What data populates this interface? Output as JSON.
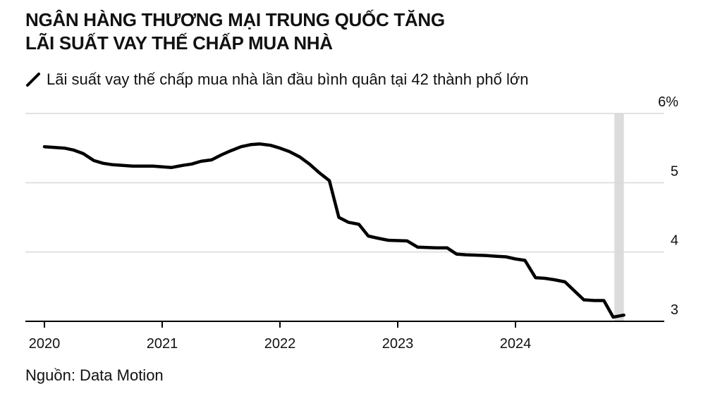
{
  "title_lines": [
    "NGÂN HÀNG THƯƠNG MẠI TRUNG QUỐC TĂNG",
    "LÃI SUẤT VAY THẾ CHẤP MUA NHÀ"
  ],
  "legend_label": "Lãi suất vay thế chấp mua nhà lần đầu bình quân tại 42 thành phố lớn",
  "source": "Nguồn: Data Motion",
  "colors": {
    "line": "#000000",
    "grid": "#d9d9d9",
    "highlight": "#dcdcdc",
    "axis": "#000000"
  },
  "chart_data": {
    "type": "line",
    "title": "NGÂN HÀNG THƯƠNG MẠI TRUNG QUỐC TĂNG LÃI SUẤT VAY THẾ CHẤP MUA NHÀ",
    "ylim": [
      3,
      6
    ],
    "y_ticks": [
      6,
      5,
      4,
      3
    ],
    "y_tick_labels": [
      "6%",
      "5",
      "4",
      "3"
    ],
    "x_ticks": [
      2020,
      2021,
      2022,
      2023,
      2024
    ],
    "x_tick_labels": [
      "2020",
      "2021",
      "2022",
      "2023",
      "2024"
    ],
    "grid": "horizontal",
    "y_axis_position": "right",
    "highlight_band": [
      2024.84,
      2024.92
    ],
    "series": [
      {
        "name": "Lãi suất vay thế chấp mua nhà lần đầu bình quân tại 42 thành phố lớn",
        "points": [
          [
            2020.0,
            5.52
          ],
          [
            2020.17,
            5.5
          ],
          [
            2020.25,
            5.47
          ],
          [
            2020.33,
            5.42
          ],
          [
            2020.42,
            5.32
          ],
          [
            2020.5,
            5.28
          ],
          [
            2020.58,
            5.26
          ],
          [
            2020.75,
            5.24
          ],
          [
            2020.92,
            5.24
          ],
          [
            2021.08,
            5.22
          ],
          [
            2021.17,
            5.25
          ],
          [
            2021.25,
            5.27
          ],
          [
            2021.33,
            5.31
          ],
          [
            2021.42,
            5.33
          ],
          [
            2021.5,
            5.4
          ],
          [
            2021.58,
            5.46
          ],
          [
            2021.67,
            5.52
          ],
          [
            2021.75,
            5.55
          ],
          [
            2021.83,
            5.56
          ],
          [
            2021.92,
            5.54
          ],
          [
            2022.0,
            5.5
          ],
          [
            2022.08,
            5.45
          ],
          [
            2022.17,
            5.37
          ],
          [
            2022.25,
            5.27
          ],
          [
            2022.33,
            5.15
          ],
          [
            2022.42,
            5.03
          ],
          [
            2022.5,
            4.5
          ],
          [
            2022.58,
            4.43
          ],
          [
            2022.67,
            4.4
          ],
          [
            2022.75,
            4.23
          ],
          [
            2022.83,
            4.2
          ],
          [
            2022.92,
            4.17
          ],
          [
            2023.08,
            4.16
          ],
          [
            2023.17,
            4.07
          ],
          [
            2023.33,
            4.06
          ],
          [
            2023.42,
            4.06
          ],
          [
            2023.5,
            3.97
          ],
          [
            2023.58,
            3.96
          ],
          [
            2023.75,
            3.95
          ],
          [
            2023.83,
            3.94
          ],
          [
            2023.92,
            3.93
          ],
          [
            2024.0,
            3.9
          ],
          [
            2024.08,
            3.88
          ],
          [
            2024.17,
            3.63
          ],
          [
            2024.25,
            3.62
          ],
          [
            2024.33,
            3.6
          ],
          [
            2024.42,
            3.57
          ],
          [
            2024.5,
            3.44
          ],
          [
            2024.58,
            3.31
          ],
          [
            2024.67,
            3.3
          ],
          [
            2024.75,
            3.3
          ],
          [
            2024.83,
            3.06
          ],
          [
            2024.92,
            3.09
          ]
        ]
      }
    ]
  }
}
